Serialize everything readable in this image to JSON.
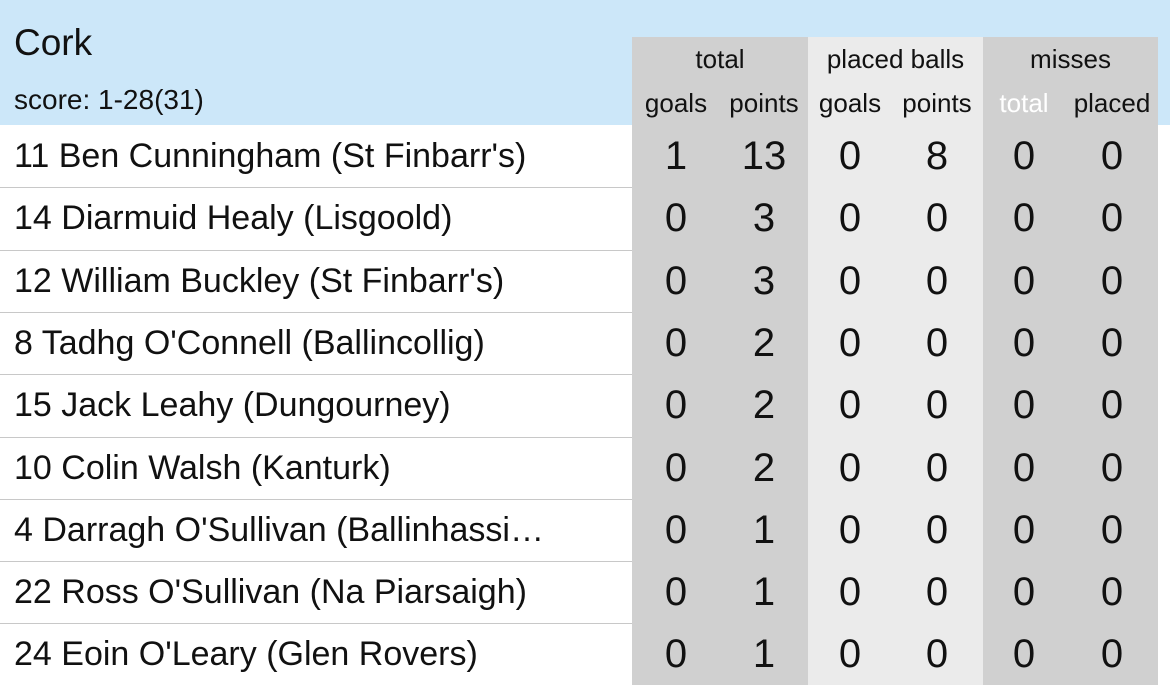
{
  "header": {
    "team": "Cork",
    "score": "score: 1-28(31)"
  },
  "columns": {
    "groups": [
      "total",
      "placed balls",
      "misses"
    ],
    "subheaders": [
      "goals",
      "points",
      "goals",
      "points",
      "total",
      "placed"
    ]
  },
  "table": {
    "rows": [
      {
        "player": "11 Ben Cunningham (St Finbarr's)",
        "values": [
          1,
          13,
          0,
          8,
          0,
          0
        ]
      },
      {
        "player": "14 Diarmuid Healy (Lisgoold)",
        "values": [
          0,
          3,
          0,
          0,
          0,
          0
        ]
      },
      {
        "player": "12 William Buckley (St Finbarr's)",
        "values": [
          0,
          3,
          0,
          0,
          0,
          0
        ]
      },
      {
        "player": "8 Tadhg O'Connell (Ballincollig)",
        "values": [
          0,
          2,
          0,
          0,
          0,
          0
        ]
      },
      {
        "player": "15 Jack Leahy (Dungourney)",
        "values": [
          0,
          2,
          0,
          0,
          0,
          0
        ]
      },
      {
        "player": "10 Colin Walsh (Kanturk)",
        "values": [
          0,
          2,
          0,
          0,
          0,
          0
        ]
      },
      {
        "player": "4 Darragh O'Sullivan (Ballinhassi…",
        "values": [
          0,
          1,
          0,
          0,
          0,
          0
        ]
      },
      {
        "player": "22 Ross O'Sullivan (Na Piarsaigh)",
        "values": [
          0,
          1,
          0,
          0,
          0,
          0
        ]
      },
      {
        "player": "24 Eoin O'Leary (Glen Rovers)",
        "values": [
          0,
          1,
          0,
          0,
          0,
          0
        ]
      }
    ]
  }
}
